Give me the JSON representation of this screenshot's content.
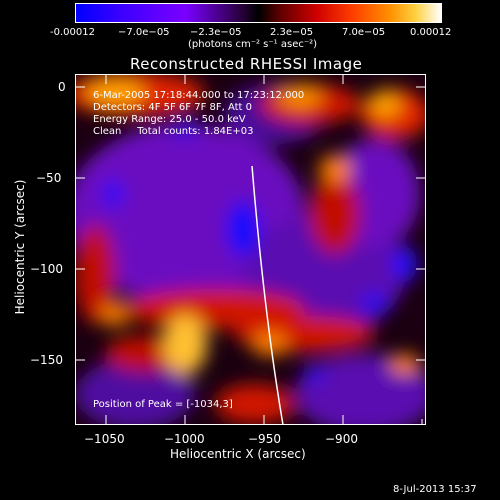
{
  "colorbar": {
    "ticks": [
      "-0.00012",
      "−7.0e−05",
      "−2.3e−05",
      "2.3e−05",
      "7.0e−05",
      "0.00012"
    ],
    "units_label": "(photons cm⁻² s⁻¹ asec⁻²)"
  },
  "plot": {
    "title": "Reconstructed RHESSI Image",
    "xlabel": "Heliocentric X (arcsec)",
    "ylabel": "Heliocentric Y (arcsec)",
    "xticks": [
      "−1050",
      "−1000",
      "−950",
      "−900"
    ],
    "yticks": [
      "0",
      "−50",
      "−100",
      "−150"
    ]
  },
  "annotations": {
    "time_range": "6-Mar-2005 17:18:44.000 to 17:23:12.000",
    "detectors": "Detectors: 4F 5F 6F 7F 8F, Att 0",
    "energy_range": "Energy Range: 25.0 - 50.0 keV",
    "clean_counts": "Clean     Total counts: 1.84E+03",
    "peak_position": "Position of Peak = [-1034,3]"
  },
  "footer": {
    "date": "8-Jul-2013 15:37"
  },
  "colors": {
    "background": "#000000",
    "axis": "#ffffff",
    "colormap": [
      "#0000ff",
      "#7f00ff",
      "#000000",
      "#ff0000",
      "#ff8c00",
      "#ffff80",
      "#ffffff"
    ]
  }
}
